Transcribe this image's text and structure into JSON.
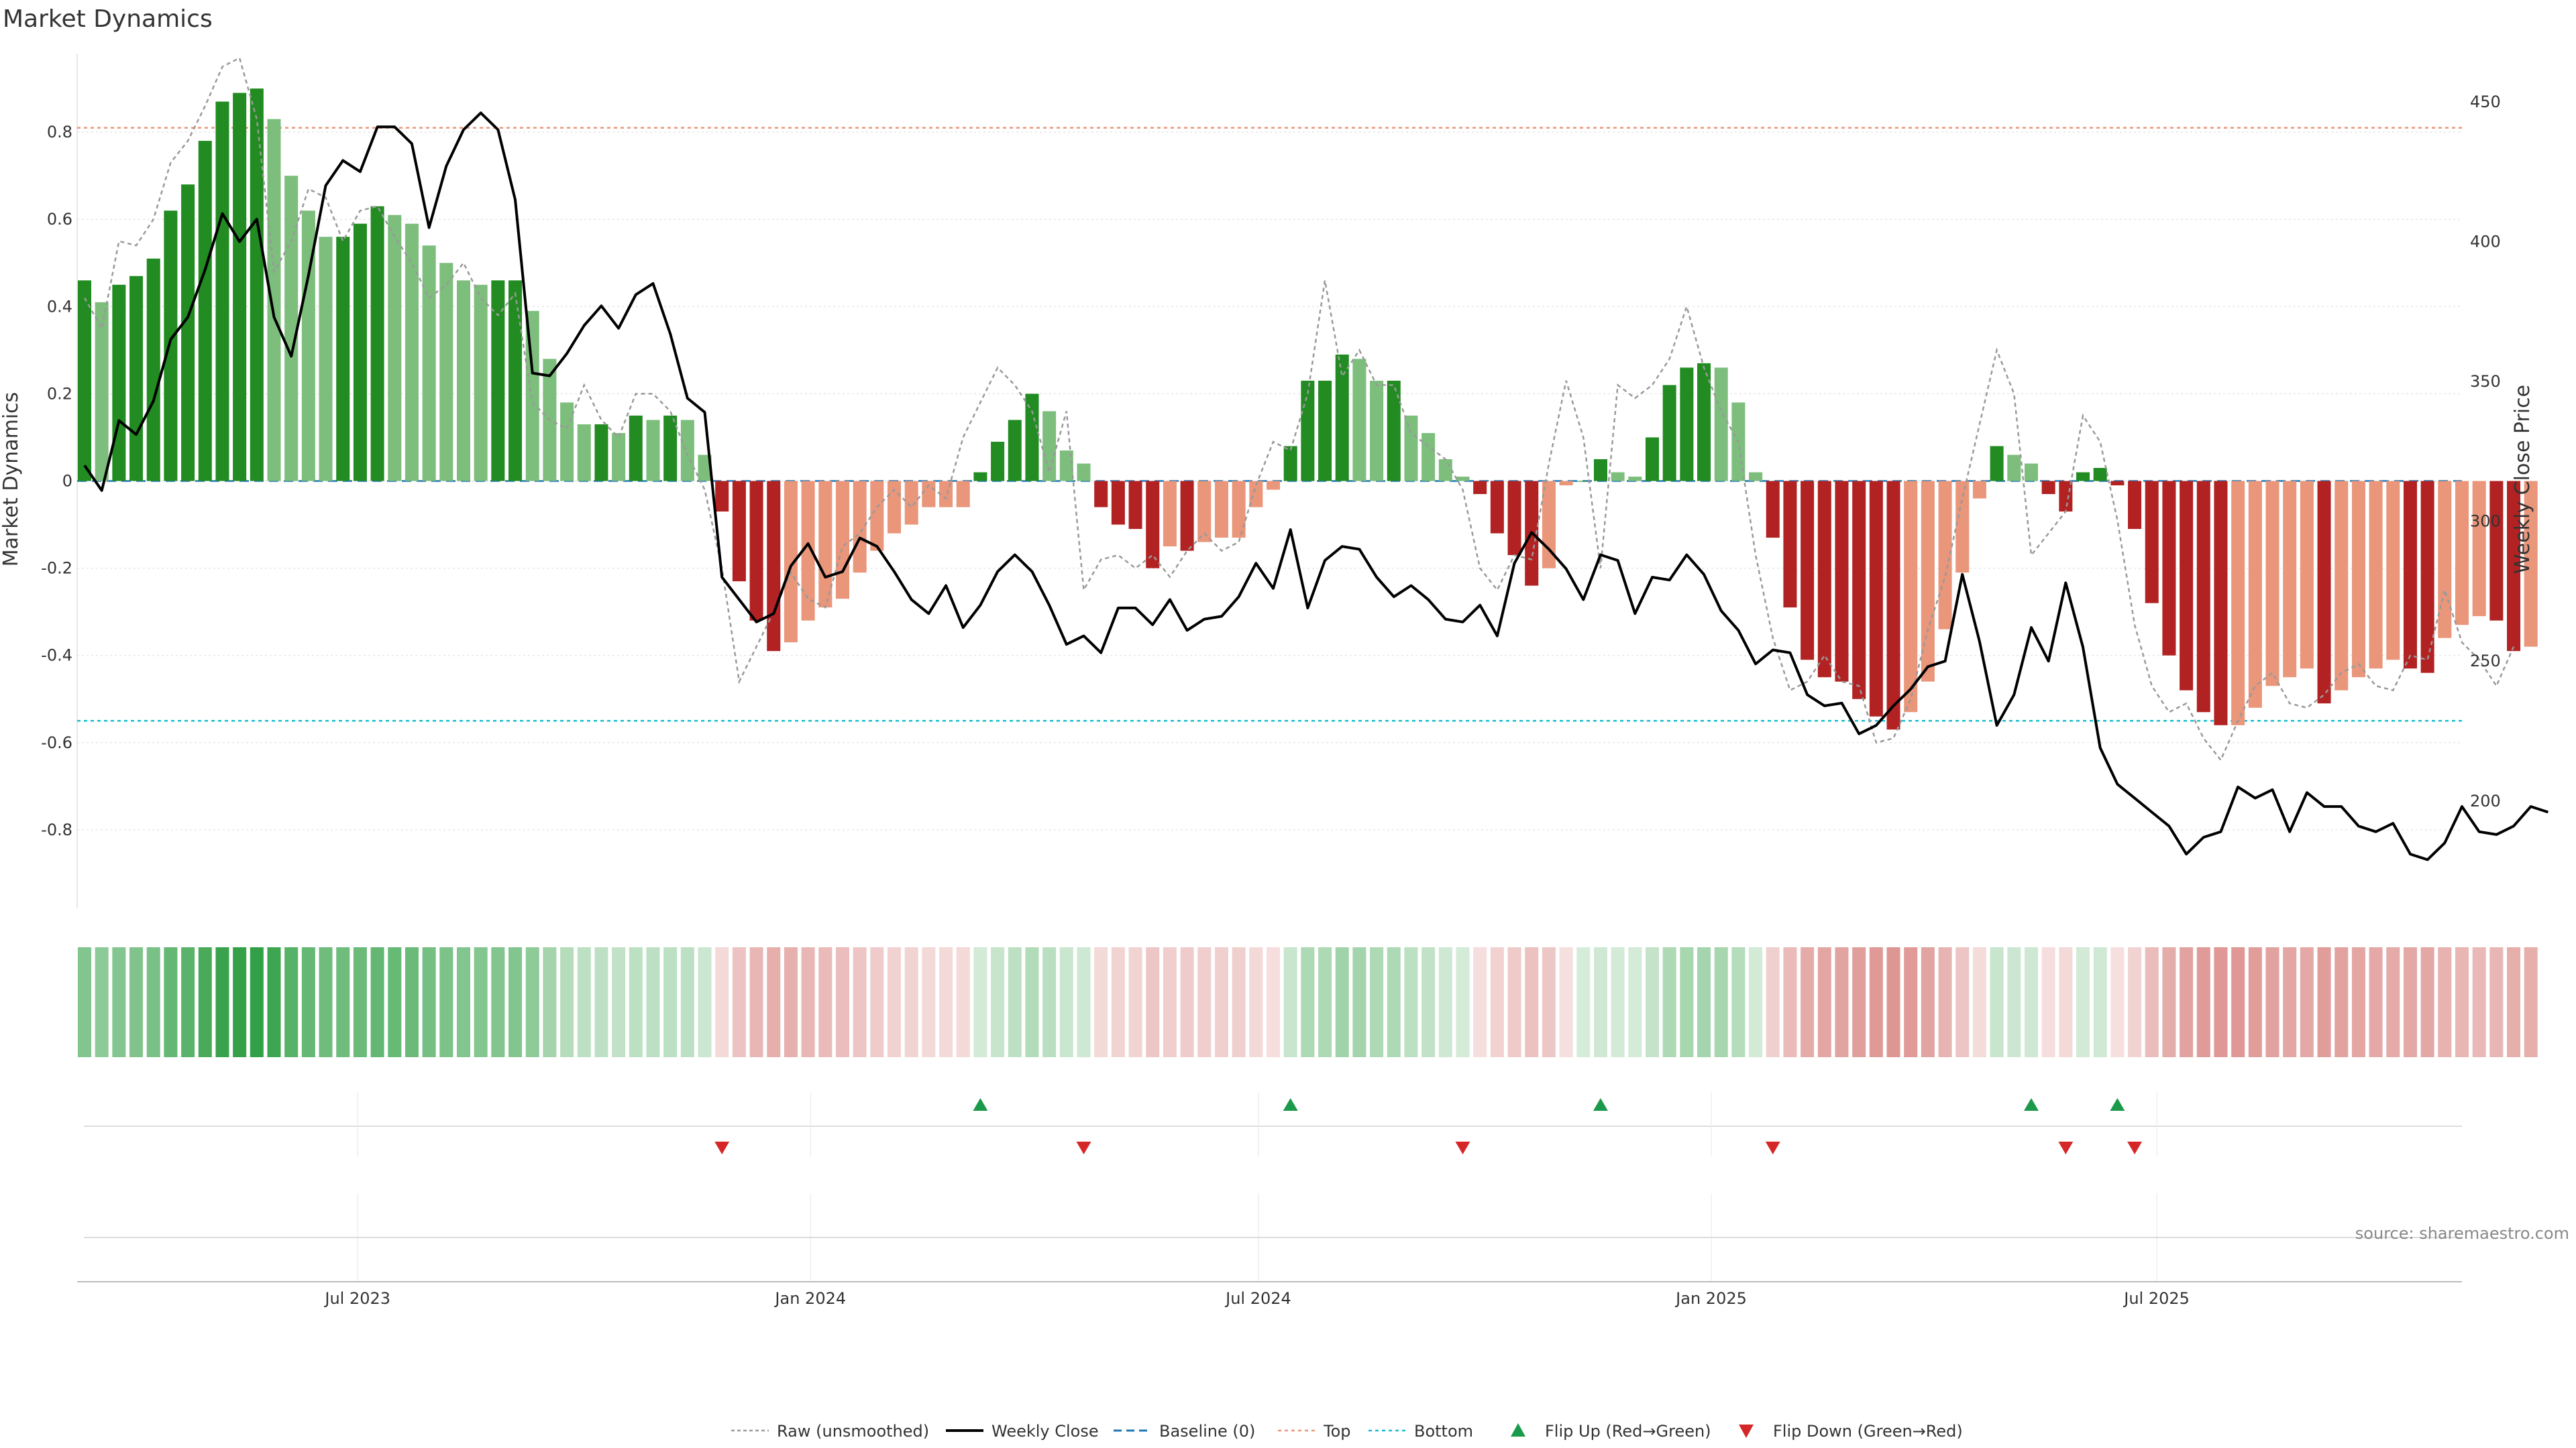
{
  "chart_data": {
    "type": "bar",
    "title": "Market Dynamics",
    "ylabel_left": "Market Dynamics",
    "ylabel_right": "Weekly Close Price",
    "source": "source: sharemaestro.com",
    "ylim_left": [
      -0.98,
      0.98
    ],
    "ylim_right": [
      161.6,
      467.2
    ],
    "yticks_left": [
      "0.8",
      "0.6",
      "0.4",
      "0.2",
      "0",
      "-0.2",
      "-0.4",
      "-0.6",
      "-0.8"
    ],
    "yticks_right": [
      "450",
      "400",
      "350",
      "300",
      "250",
      "200"
    ],
    "xlim": [
      "2023-03-09",
      "2025-11-02"
    ],
    "xticks": [
      {
        "date": "2023-07-01",
        "label": "Jul 2023"
      },
      {
        "date": "2024-01-01",
        "label": "Jan 2024"
      },
      {
        "date": "2024-07-01",
        "label": "Jul 2024"
      },
      {
        "date": "2025-01-01",
        "label": "Jan 2025"
      },
      {
        "date": "2025-07-01",
        "label": "Jul 2025"
      }
    ],
    "thresholds": {
      "top": 0.81,
      "bottom": -0.55,
      "baseline": 0
    },
    "first_week": "2023-03-12",
    "bars_smoothed": [
      0.46,
      0.41,
      0.45,
      0.47,
      0.51,
      0.62,
      0.68,
      0.78,
      0.87,
      0.89,
      0.9,
      0.83,
      0.7,
      0.62,
      0.56,
      0.56,
      0.59,
      0.63,
      0.61,
      0.59,
      0.54,
      0.5,
      0.46,
      0.45,
      0.46,
      0.46,
      0.39,
      0.28,
      0.18,
      0.13,
      0.13,
      0.11,
      0.15,
      0.14,
      0.15,
      0.14,
      0.06,
      -0.07,
      -0.23,
      -0.32,
      -0.39,
      -0.37,
      -0.32,
      -0.29,
      -0.27,
      -0.21,
      -0.16,
      -0.12,
      -0.1,
      -0.06,
      -0.06,
      -0.06,
      0.02,
      0.09,
      0.14,
      0.2,
      0.16,
      0.07,
      0.04,
      -0.06,
      -0.1,
      -0.11,
      -0.2,
      -0.15,
      -0.16,
      -0.14,
      -0.13,
      -0.13,
      -0.06,
      -0.02,
      0.08,
      0.23,
      0.23,
      0.29,
      0.28,
      0.23,
      0.23,
      0.15,
      0.11,
      0.05,
      0.01,
      -0.03,
      -0.12,
      -0.17,
      -0.24,
      -0.2,
      -0.01,
      0.0,
      0.05,
      0.02,
      0.01,
      0.1,
      0.22,
      0.26,
      0.27,
      0.26,
      0.18,
      0.02,
      -0.13,
      -0.29,
      -0.41,
      -0.45,
      -0.46,
      -0.5,
      -0.54,
      -0.57,
      -0.53,
      -0.46,
      -0.34,
      -0.21,
      -0.04,
      0.08,
      0.06,
      0.04,
      -0.03,
      -0.07,
      0.02,
      0.03,
      -0.01,
      -0.11,
      -0.28,
      -0.4,
      -0.48,
      -0.53,
      -0.56,
      -0.56,
      -0.52,
      -0.47,
      -0.45,
      -0.43,
      -0.51,
      -0.48,
      -0.45,
      -0.43,
      -0.41,
      -0.43,
      -0.44,
      -0.36,
      -0.33,
      -0.31,
      -0.32,
      -0.39,
      -0.38
    ],
    "raw_unsmoothed": [
      0.42,
      0.35,
      0.55,
      0.54,
      0.6,
      0.73,
      0.78,
      0.86,
      0.95,
      0.97,
      0.83,
      0.48,
      0.55,
      0.67,
      0.65,
      0.55,
      0.62,
      0.63,
      0.56,
      0.5,
      0.42,
      0.45,
      0.5,
      0.42,
      0.38,
      0.43,
      0.18,
      0.14,
      0.12,
      0.22,
      0.14,
      0.1,
      0.2,
      0.2,
      0.16,
      0.06,
      -0.02,
      -0.2,
      -0.46,
      -0.38,
      -0.3,
      -0.21,
      -0.27,
      -0.29,
      -0.15,
      -0.12,
      -0.06,
      -0.02,
      -0.06,
      -0.01,
      -0.04,
      0.1,
      0.18,
      0.26,
      0.22,
      0.16,
      0.02,
      0.16,
      -0.25,
      -0.18,
      -0.17,
      -0.2,
      -0.17,
      -0.22,
      -0.16,
      -0.12,
      -0.16,
      -0.14,
      -0.01,
      0.09,
      0.07,
      0.2,
      0.46,
      0.24,
      0.3,
      0.22,
      0.22,
      0.11,
      0.08,
      0.05,
      -0.02,
      -0.2,
      -0.25,
      -0.17,
      -0.18,
      0.04,
      0.23,
      0.1,
      -0.2,
      0.22,
      0.19,
      0.22,
      0.28,
      0.4,
      0.26,
      0.16,
      0.09,
      -0.17,
      -0.36,
      -0.48,
      -0.46,
      -0.4,
      -0.46,
      -0.47,
      -0.6,
      -0.59,
      -0.5,
      -0.34,
      -0.22,
      -0.04,
      0.13,
      0.3,
      0.2,
      -0.17,
      -0.12,
      -0.07,
      0.15,
      0.09,
      -0.09,
      -0.33,
      -0.47,
      -0.53,
      -0.51,
      -0.59,
      -0.64,
      -0.55,
      -0.47,
      -0.44,
      -0.51,
      -0.52,
      -0.49,
      -0.44,
      -0.42,
      -0.47,
      -0.48,
      -0.4,
      -0.41,
      -0.25,
      -0.37,
      -0.41,
      -0.47,
      -0.38
    ],
    "weekly_close": [
      320,
      311,
      336,
      331,
      343,
      365,
      373,
      390,
      410,
      400,
      408,
      373,
      359,
      388,
      420,
      429,
      425,
      441,
      441,
      435,
      405,
      427,
      440,
      446,
      440,
      415,
      353,
      352,
      360,
      370,
      377,
      369,
      381,
      385,
      367,
      344,
      339,
      280,
      272,
      264,
      267,
      284,
      292,
      280,
      282,
      294,
      291,
      282,
      272,
      267,
      277,
      262,
      270,
      282,
      288,
      282,
      270,
      256,
      259,
      253,
      269,
      269,
      263,
      272,
      261,
      265,
      266,
      273,
      285,
      276,
      297,
      269,
      286,
      291,
      290,
      280,
      273,
      277,
      272,
      265,
      264,
      270,
      259,
      285,
      296,
      290,
      283,
      272,
      288,
      286,
      267,
      280,
      279,
      288,
      281,
      268,
      261,
      249,
      254,
      253,
      238,
      234,
      235,
      224,
      227,
      234,
      240,
      248,
      250,
      281,
      257,
      227,
      238,
      262,
      250,
      278,
      255,
      219,
      206,
      201,
      196,
      191,
      181,
      187,
      189,
      205,
      201,
      204,
      189,
      203,
      198,
      198,
      191,
      189,
      192,
      181,
      179,
      185,
      198,
      189,
      188,
      191,
      198,
      196
    ],
    "flips_up_week": [
      52,
      70,
      88,
      113,
      118
    ],
    "flips_down_week": [
      37,
      58,
      80,
      98,
      115,
      119
    ],
    "legend": [
      "Raw (unsmoothed)",
      "Weekly Close",
      "Baseline (0)",
      "Top",
      "Bottom",
      "Flip Up (Red→Green)",
      "Flip Down (Green→Red)"
    ],
    "colors": {
      "bull_strong": "#228B22",
      "bull_light": "#7DBE7D",
      "bear_strong": "#B22222",
      "bear_light": "#E9967A",
      "close_line": "#000000",
      "raw_line": "#999999",
      "baseline": "#1f77b4",
      "top_line": "#E9967A",
      "bottom_line": "#17becf",
      "flip_up": "#1a9a4a",
      "flip_down": "#d62728"
    }
  }
}
